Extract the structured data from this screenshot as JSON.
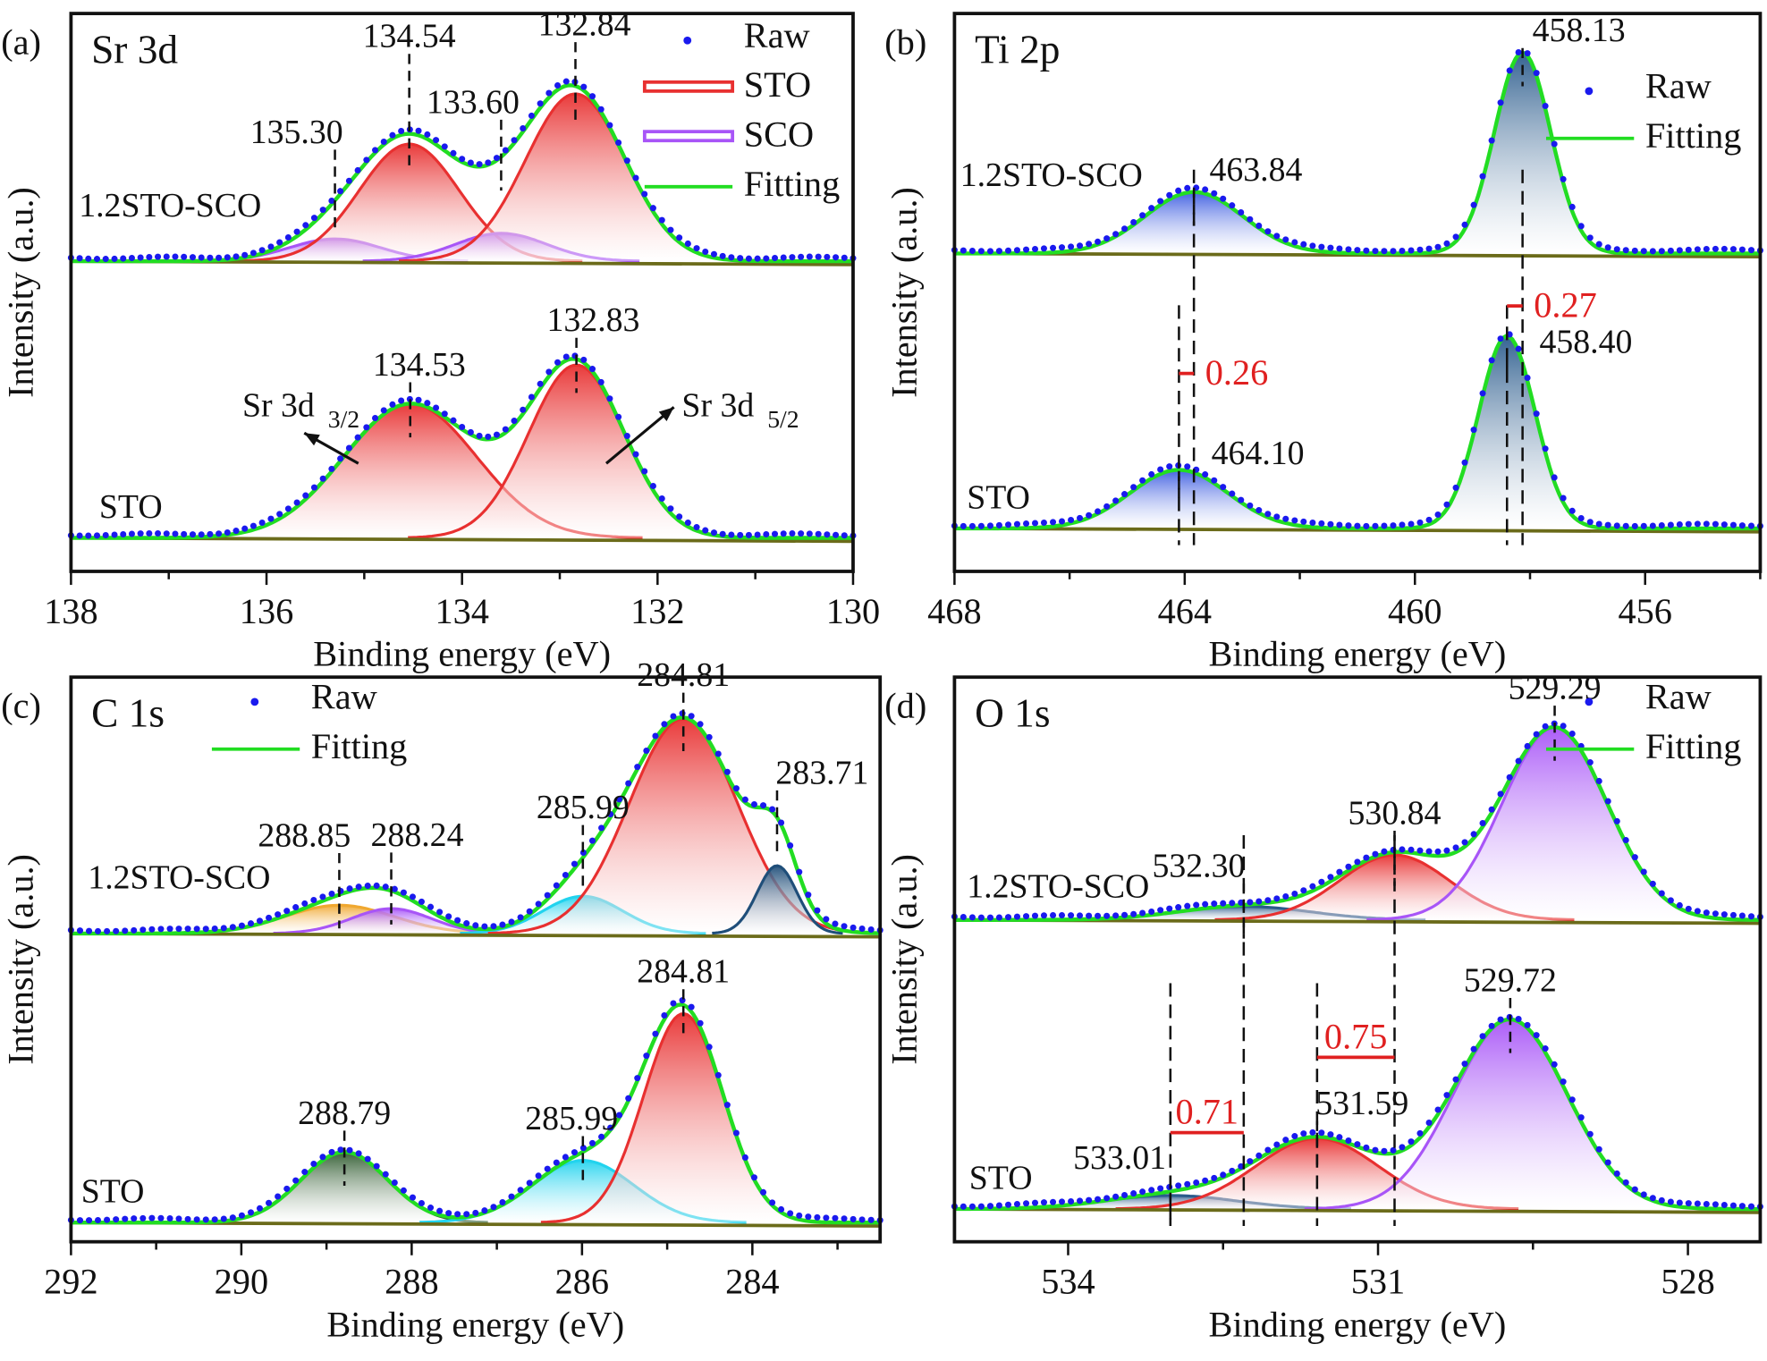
{
  "chart_data": [
    {
      "type": "area",
      "panel_label": "(a)",
      "title": "Sr 3d",
      "xlabel": "Binding energy (eV)",
      "ylabel": "Intensity (a.u.)",
      "xlim": [
        138,
        130
      ],
      "ylim": [
        0,
        100
      ],
      "xticks": [
        138,
        136,
        134,
        132,
        130
      ],
      "legend": {
        "placement": "top-right",
        "entries": [
          {
            "name": "Raw",
            "kind": "dot",
            "color": "#1a1aee"
          },
          {
            "name": "STO",
            "kind": "band",
            "color": "#e83030"
          },
          {
            "name": "SCO",
            "kind": "band",
            "color": "#a855f7"
          },
          {
            "name": "Fitting",
            "kind": "line",
            "color": "#22dd22"
          }
        ]
      },
      "spectra": [
        {
          "sample": "1.2STO-SCO",
          "offset": 55.6,
          "components": [
            {
              "center": 135.3,
              "height": 4,
              "fwhm": 1.1,
              "color": "#a855f7",
              "label": "135.30"
            },
            {
              "center": 134.54,
              "height": 21,
              "fwhm": 1.2,
              "color": "#e83030",
              "label": "134.54"
            },
            {
              "center": 133.6,
              "height": 5,
              "fwhm": 1.1,
              "color": "#a855f7",
              "label": "133.60"
            },
            {
              "center": 132.84,
              "height": 30,
              "fwhm": 1.2,
              "color": "#e83030",
              "label": "132.84"
            }
          ]
        },
        {
          "sample": "STO",
          "offset": 6,
          "components": [
            {
              "center": 134.53,
              "height": 24,
              "fwhm": 1.6,
              "color": "#e83030",
              "label": "134.53"
            },
            {
              "center": 132.83,
              "height": 31,
              "fwhm": 1.15,
              "color": "#e83030",
              "label": "132.83"
            }
          ]
        }
      ],
      "annotations": [
        {
          "text": "Sr 3d",
          "sub": "3/2"
        },
        {
          "text": "Sr 3d",
          "sub": "5/2"
        }
      ]
    },
    {
      "type": "area",
      "panel_label": "(b)",
      "title": "Ti 2p",
      "xlabel": "Binding energy (eV)",
      "ylabel": "Intensity (a.u.)",
      "xlim": [
        468,
        454
      ],
      "ylim": [
        0,
        100
      ],
      "xticks": [
        468,
        464,
        460,
        456
      ],
      "legend": {
        "placement": "top-right",
        "entries": [
          {
            "name": "Raw",
            "kind": "dot",
            "color": "#1a1aee"
          },
          {
            "name": "Fitting",
            "kind": "line",
            "color": "#22dd22"
          }
        ]
      },
      "spectra": [
        {
          "sample": "1.2STO-SCO",
          "offset": 57,
          "components": [
            {
              "center": 463.84,
              "height": 11,
              "fwhm": 2.0,
              "color": "#3a5ae0",
              "label": "463.84"
            },
            {
              "center": 458.13,
              "height": 36,
              "fwhm": 1.15,
              "color": "#2a5b8c",
              "label": "458.13"
            }
          ]
        },
        {
          "sample": "STO",
          "offset": 7.7,
          "components": [
            {
              "center": 464.1,
              "height": 10.5,
              "fwhm": 2.0,
              "color": "#3a5ae0",
              "label": "464.10"
            },
            {
              "center": 458.4,
              "height": 34.5,
              "fwhm": 1.15,
              "color": "#2a5b8c",
              "label": "458.40"
            }
          ]
        }
      ],
      "shifts": [
        {
          "from": 458.4,
          "to": 458.13,
          "text": "0.27",
          "color": "#e02020"
        },
        {
          "from": 464.1,
          "to": 463.84,
          "text": "0.26",
          "color": "#e02020"
        }
      ]
    },
    {
      "type": "area",
      "panel_label": "(c)",
      "title": "C 1s",
      "xlabel": "Binding energy (eV)",
      "ylabel": "Intensity (a.u.)",
      "xlim": [
        292,
        282.5
      ],
      "ylim": [
        0,
        100
      ],
      "xticks": [
        292,
        290,
        288,
        286,
        284
      ],
      "legend": {
        "placement": "top-left",
        "entries": [
          {
            "name": "Raw",
            "kind": "dot",
            "color": "#1a1aee"
          },
          {
            "name": "Fitting",
            "kind": "line",
            "color": "#22dd22"
          }
        ]
      },
      "spectra": [
        {
          "sample": "1.2STO-SCO",
          "offset": 54.6,
          "components": [
            {
              "center": 288.85,
              "height": 5,
              "fwhm": 1.5,
              "color": "#f0a830",
              "label": "288.85"
            },
            {
              "center": 288.24,
              "height": 4.4,
              "fwhm": 1.1,
              "color": "#a855f7",
              "label": "288.24"
            },
            {
              "center": 285.99,
              "height": 6.6,
              "fwhm": 1.1,
              "color": "#22d3ee",
              "label": "285.99"
            },
            {
              "center": 284.81,
              "height": 38,
              "fwhm": 1.5,
              "color": "#e83030",
              "label": "284.81"
            },
            {
              "center": 283.71,
              "height": 12,
              "fwhm": 0.55,
              "color": "#1f4e79",
              "label": "283.71"
            }
          ]
        },
        {
          "sample": "STO",
          "offset": 3.4,
          "components": [
            {
              "center": 288.79,
              "height": 12.5,
              "fwhm": 1.2,
              "color": "#2e5a2e",
              "label": "288.79"
            },
            {
              "center": 285.99,
              "height": 11,
              "fwhm": 1.4,
              "color": "#22d3ee",
              "label": "285.99"
            },
            {
              "center": 284.81,
              "height": 37,
              "fwhm": 1.1,
              "color": "#e83030",
              "label": "284.81"
            }
          ]
        }
      ]
    },
    {
      "type": "area",
      "panel_label": "(d)",
      "title": "O 1s",
      "xlabel": "Binding energy (eV)",
      "ylabel": "Intensity (a.u.)",
      "xlim": [
        535.1,
        527.3
      ],
      "ylim": [
        0,
        100
      ],
      "xticks": [
        534,
        531,
        528
      ],
      "legend": {
        "placement": "top-right",
        "entries": [
          {
            "name": "Raw",
            "kind": "dot",
            "color": "#1a1aee"
          },
          {
            "name": "Fitting",
            "kind": "line",
            "color": "#22dd22"
          }
        ]
      },
      "spectra": [
        {
          "sample": "1.2STO-SCO",
          "offset": 57,
          "components": [
            {
              "center": 532.3,
              "height": 2.4,
              "fwhm": 1.5,
              "color": "#2a5b8c",
              "label": "532.30"
            },
            {
              "center": 530.84,
              "height": 11.5,
              "fwhm": 1.25,
              "color": "#e83030",
              "label": "530.84"
            },
            {
              "center": 529.29,
              "height": 34,
              "fwhm": 1.2,
              "color": "#a855f7",
              "label": "529.29"
            }
          ]
        },
        {
          "sample": "STO",
          "offset": 5.8,
          "components": [
            {
              "center": 533.01,
              "height": 2.4,
              "fwhm": 1.5,
              "color": "#2a5b8c",
              "label": "533.01"
            },
            {
              "center": 531.59,
              "height": 12.5,
              "fwhm": 1.4,
              "color": "#e83030",
              "label": "531.59"
            },
            {
              "center": 529.72,
              "height": 33.5,
              "fwhm": 1.3,
              "color": "#a855f7",
              "label": "529.72"
            }
          ]
        }
      ],
      "shifts": [
        {
          "from": 531.59,
          "to": 530.84,
          "text": "0.75",
          "color": "#e02020"
        },
        {
          "from": 533.01,
          "to": 532.3,
          "text": "0.71",
          "color": "#e02020"
        }
      ]
    }
  ]
}
